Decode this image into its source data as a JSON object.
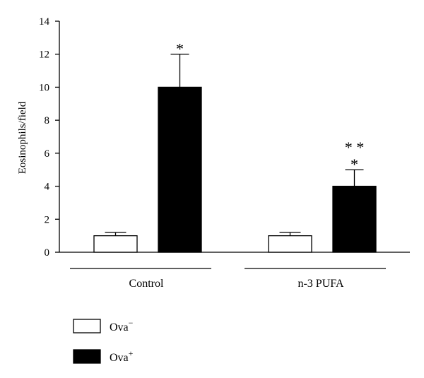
{
  "chart_data": {
    "type": "bar",
    "title": "",
    "xlabel": "",
    "ylabel": "Eosinophils/field",
    "ylim": [
      0,
      14
    ],
    "yticks": [
      0,
      2,
      4,
      6,
      8,
      10,
      12,
      14
    ],
    "groups": [
      "Control",
      "n-3 PUFA"
    ],
    "series": [
      {
        "name": "Ova−",
        "color": "#ffffff",
        "values": [
          1,
          1
        ],
        "errors": [
          0.2,
          0.2
        ]
      },
      {
        "name": "Ova+",
        "color": "#000000",
        "values": [
          10,
          4
        ],
        "errors": [
          2,
          1
        ]
      }
    ],
    "annotations": [
      {
        "group": 0,
        "series": 1,
        "lines": [
          "*"
        ]
      },
      {
        "group": 1,
        "series": 1,
        "lines": [
          "* *",
          "*"
        ]
      }
    ],
    "legend": {
      "position": "bottom-left",
      "items": [
        {
          "base": "Ova",
          "sup": "−",
          "color": "#ffffff"
        },
        {
          "base": "Ova",
          "sup": "+",
          "color": "#000000"
        }
      ]
    },
    "grid": false
  }
}
